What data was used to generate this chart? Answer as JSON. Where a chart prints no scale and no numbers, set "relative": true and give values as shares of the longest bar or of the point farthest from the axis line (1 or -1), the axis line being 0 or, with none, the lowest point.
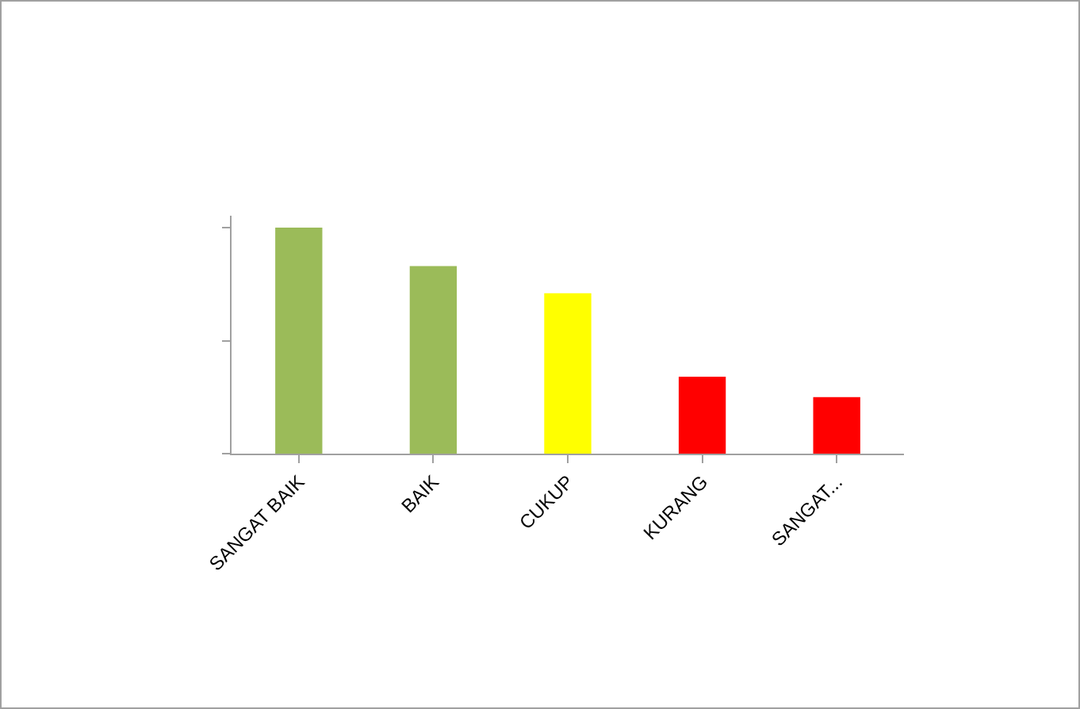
{
  "chart_data": {
    "type": "bar",
    "relative": true,
    "categories": [
      "SANGAT BAIK",
      "BAIK",
      "CUKUP",
      "KURANG",
      "SANGAT..."
    ],
    "values": [
      1,
      0.83,
      0.71,
      0.34,
      0.25
    ],
    "colors": [
      "#9bbb59",
      "#9bbb59",
      "#ffff00",
      "#ff0000",
      "#ff0000"
    ]
  }
}
